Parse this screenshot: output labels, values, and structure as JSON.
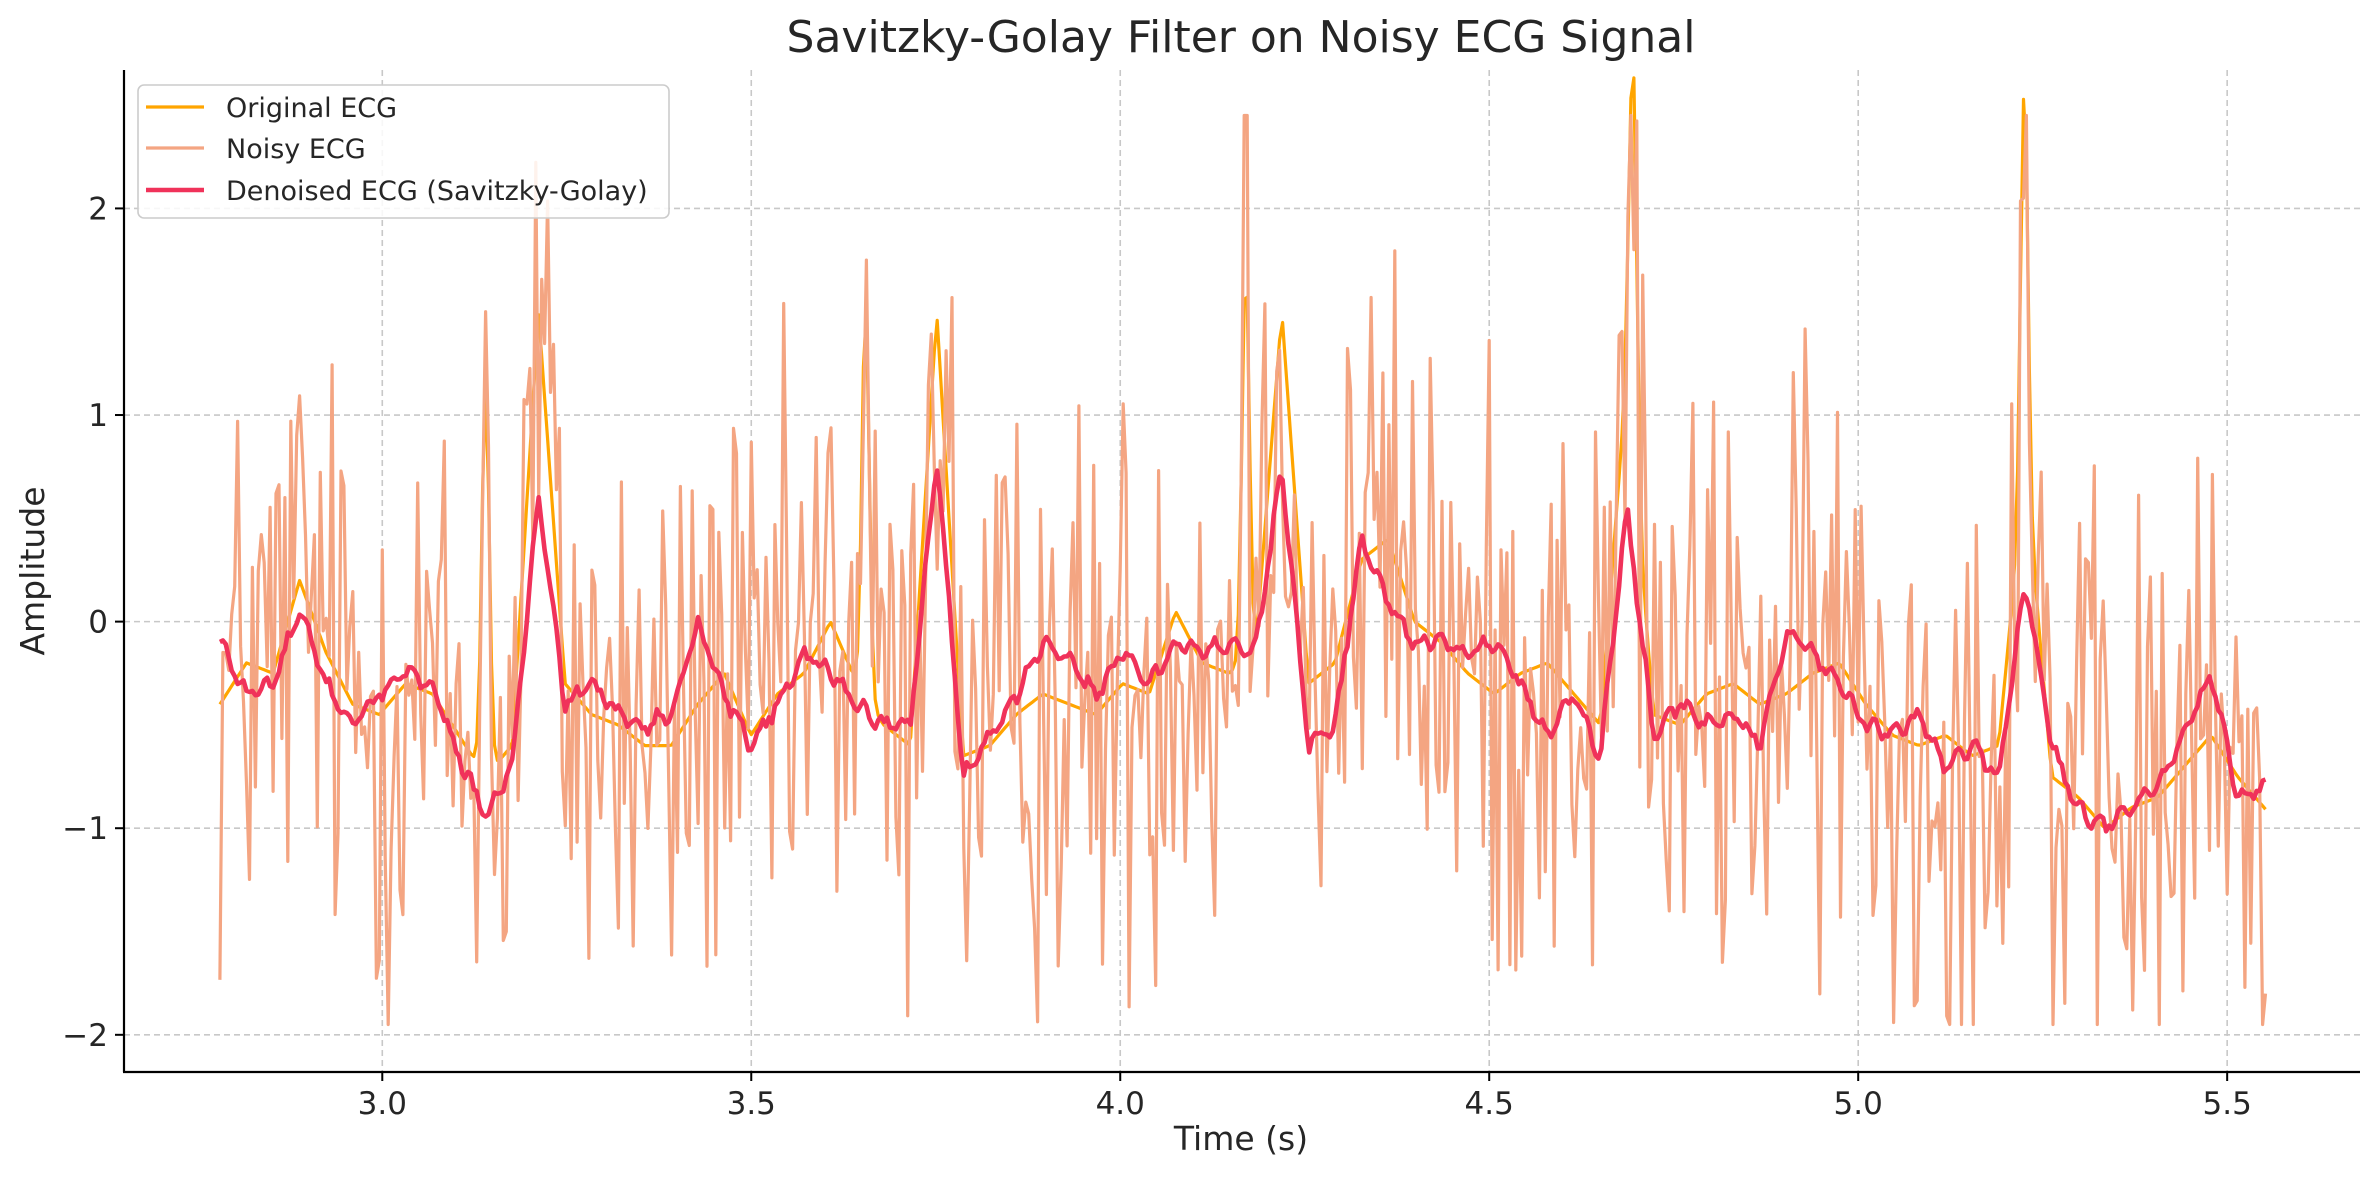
{
  "chart_data": {
    "type": "line",
    "title": "Savitzky-Golay Filter on Noisy ECG Signal",
    "xlabel": "Time (s)",
    "ylabel": "Amplitude",
    "xlim": [
      2.65,
      5.68
    ],
    "ylim": [
      -2.18,
      2.67
    ],
    "x_ticks": [
      3.0,
      3.5,
      4.0,
      4.5,
      5.0,
      5.5
    ],
    "x_tick_labels": [
      "3.0",
      "3.5",
      "4.0",
      "4.5",
      "5.0",
      "5.5"
    ],
    "y_ticks": [
      -2,
      -1,
      0,
      1,
      2
    ],
    "y_tick_labels": [
      "−2",
      "−1",
      "0",
      "1",
      "2"
    ],
    "grid": true,
    "legend_position": "top-left",
    "x_range": [
      2.78,
      5.55
    ],
    "sample_step": 0.004,
    "r_peaks": [
      3.14,
      3.655,
      4.17,
      4.695,
      5.225
    ],
    "series": [
      {
        "name": "Original ECG",
        "color": "#FFA500",
        "values": [
          -0.4,
          -0.2,
          -0.25,
          0.2,
          -0.15,
          -0.4,
          -0.45,
          -0.3,
          -0.35,
          -0.55,
          -0.75,
          -0.6,
          1.5,
          -0.3,
          -0.45,
          -0.5,
          -0.6,
          -0.6,
          -0.4,
          -0.25,
          -0.55,
          -0.35,
          -0.25,
          0.0,
          -0.3,
          -0.5,
          -0.6,
          1.5,
          -0.65,
          -0.6,
          -0.45,
          -0.35,
          -0.4,
          -0.45,
          -0.3,
          -0.35,
          0.05,
          -0.2,
          -0.25,
          -0.15,
          1.5,
          -0.3,
          -0.2,
          0.3,
          0.4,
          0.0,
          -0.1,
          -0.25,
          -0.35,
          -0.25,
          -0.2,
          -0.35,
          -0.5,
          1.2,
          -0.45,
          -0.5,
          -0.35,
          -0.3,
          -0.4,
          -0.35,
          -0.25,
          -0.2,
          -0.4,
          -0.55,
          -0.6,
          -0.55,
          -0.65,
          -0.6,
          0.75,
          -0.75,
          -0.85,
          -1.0,
          -0.9,
          -0.85,
          -0.7,
          -0.55,
          -0.75,
          -0.9
        ]
      },
      {
        "name": "Noisy ECG",
        "color": "#F4A582",
        "noise_range": [
          -1.95,
          2.45
        ],
        "peak_values": [
          1.5,
          1.75,
          2.45,
          1.8,
          2.05
        ]
      },
      {
        "name": "Denoised ECG (Savitzky-Golay)",
        "color": "#F0325A",
        "values": [
          -0.1,
          -0.35,
          -0.3,
          0.05,
          -0.3,
          -0.5,
          -0.35,
          -0.25,
          -0.3,
          -0.65,
          -0.95,
          -0.7,
          0.6,
          -0.4,
          -0.3,
          -0.45,
          -0.5,
          -0.45,
          0.0,
          -0.35,
          -0.6,
          -0.4,
          -0.15,
          -0.25,
          -0.4,
          -0.5,
          -0.5,
          0.8,
          -0.75,
          -0.55,
          -0.35,
          -0.1,
          -0.2,
          -0.35,
          -0.15,
          -0.3,
          -0.1,
          -0.15,
          -0.1,
          -0.15,
          0.75,
          -0.6,
          -0.5,
          0.4,
          0.1,
          -0.1,
          -0.1,
          -0.15,
          -0.1,
          -0.3,
          -0.55,
          -0.35,
          -0.65,
          0.55,
          -0.55,
          -0.4,
          -0.5,
          -0.45,
          -0.6,
          -0.05,
          -0.15,
          -0.3,
          -0.5,
          -0.55,
          -0.45,
          -0.7,
          -0.6,
          -0.75,
          0.2,
          -0.6,
          -0.9,
          -1.0,
          -0.9,
          -0.8,
          -0.55,
          -0.25,
          -0.85,
          -0.8
        ]
      }
    ]
  }
}
